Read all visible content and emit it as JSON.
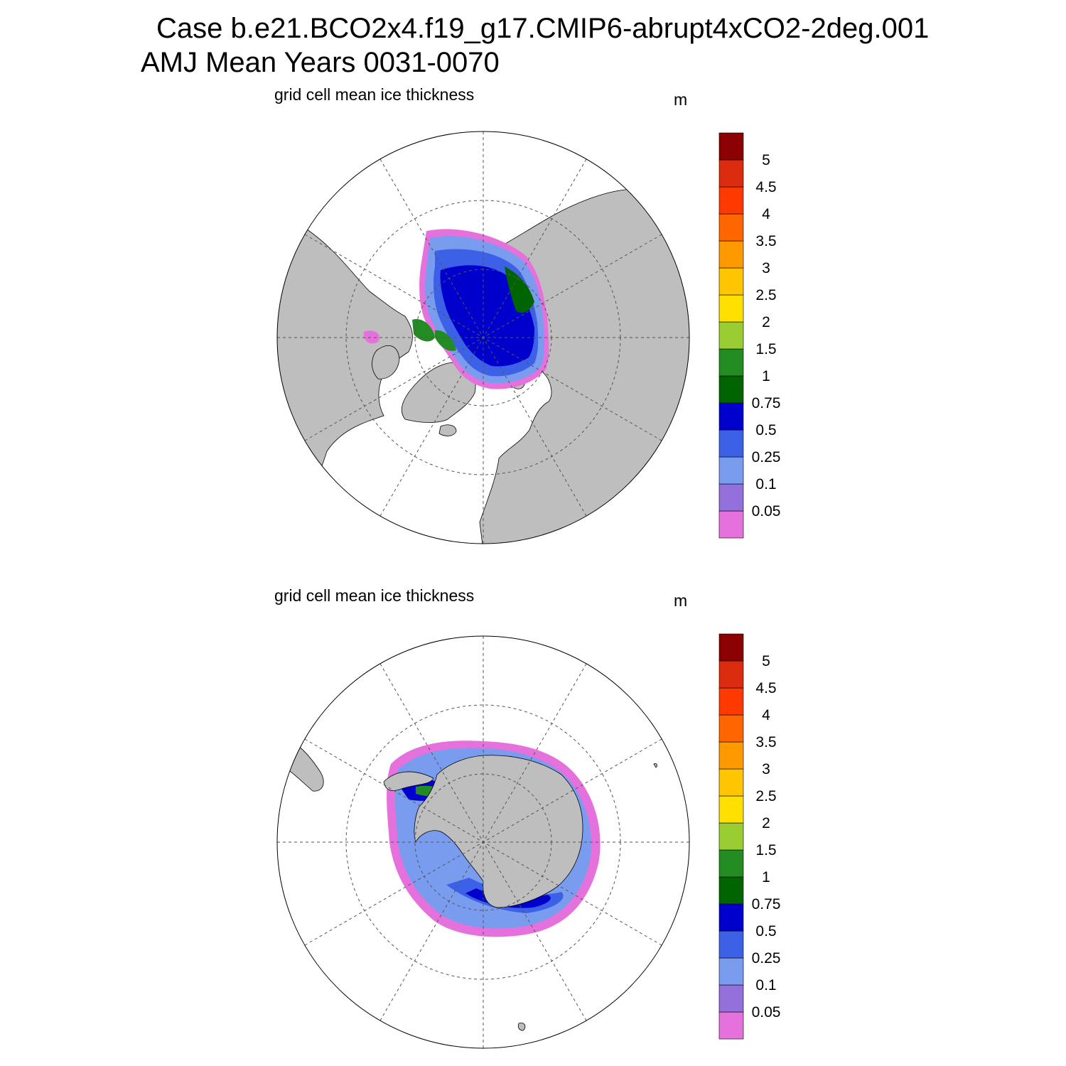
{
  "title": {
    "line1": "Case b.e21.BCO2x4.f19_g17.CMIP6-abrupt4xCO2-2deg.001",
    "line2": "AMJ Mean   Years 0031-0070"
  },
  "colors": {
    "land": "#bebebe",
    "ocean": "#ffffff",
    "grid": "#555555",
    "levels": [
      "#e571dc",
      "#9370db",
      "#799cef",
      "#3c61e6",
      "#0000cd",
      "#006400",
      "#228b22",
      "#9acd32",
      "#ffe000",
      "#ffc500",
      "#ff9900",
      "#ff6600",
      "#ff3a00",
      "#dc2c10",
      "#8b0000"
    ]
  },
  "colorbar": {
    "labels": [
      "0.05",
      "0.1",
      "0.25",
      "0.5",
      "0.75",
      "1",
      "1.5",
      "2",
      "2.5",
      "3",
      "3.5",
      "4",
      "4.5",
      "5"
    ]
  },
  "panels": [
    {
      "id": "north",
      "title": "grid cell mean ice thickness",
      "units": "m"
    },
    {
      "id": "south",
      "title": "grid cell mean ice thickness",
      "units": "m"
    }
  ]
}
